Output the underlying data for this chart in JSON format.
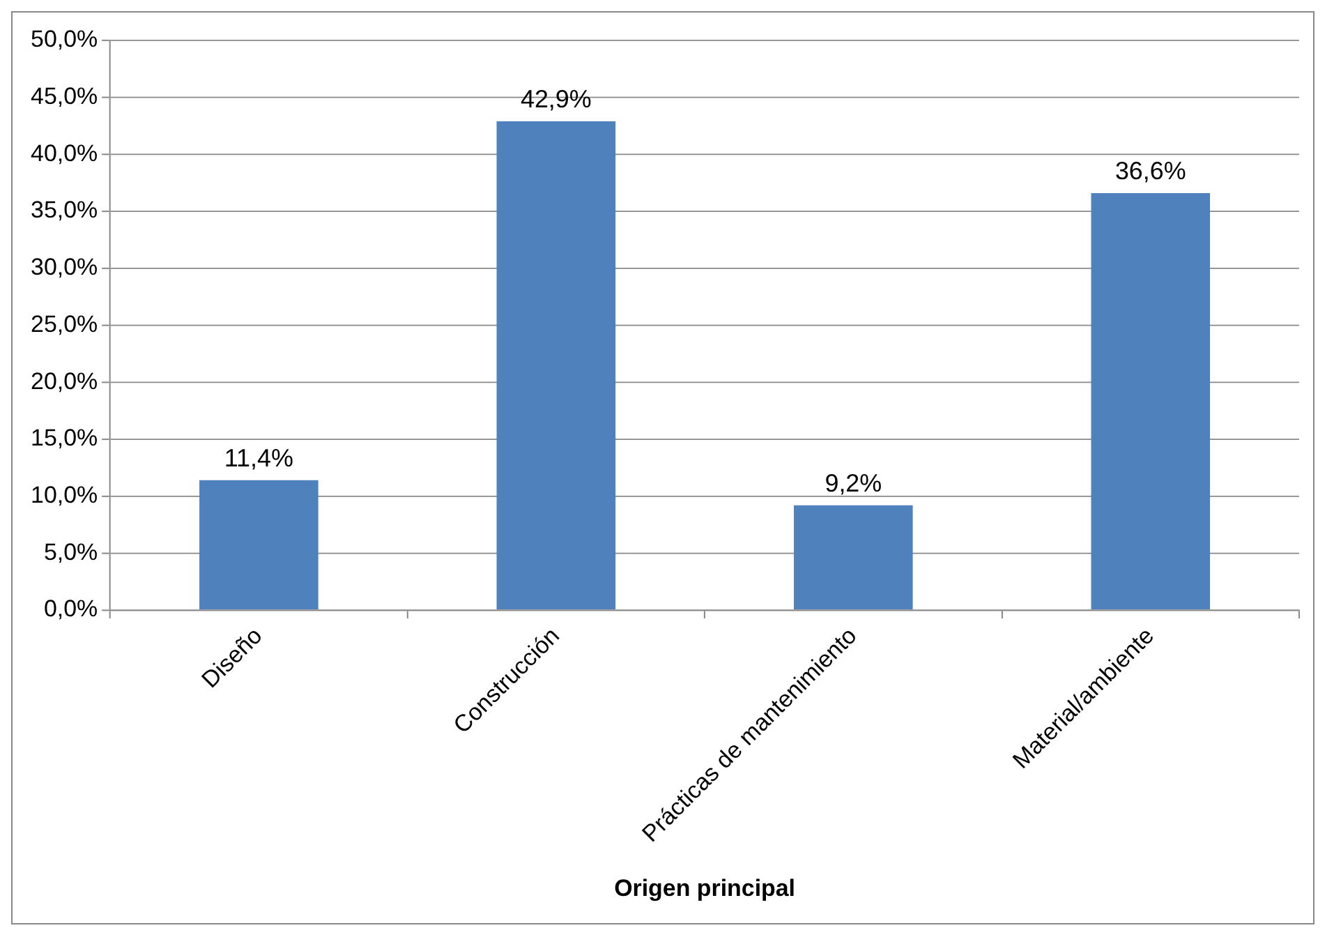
{
  "chart_data": {
    "type": "bar",
    "xlabel": "Origen principal",
    "categories": [
      "Diseño",
      "Construcción",
      "Prácticas de mantenimiento",
      "Material/ambiente"
    ],
    "values": [
      11.4,
      42.9,
      9.2,
      36.6
    ],
    "value_labels": [
      "11,4%",
      "42,9%",
      "9,2%",
      "36,6%"
    ],
    "color": "#4f81bd",
    "ylim": [
      0,
      50
    ],
    "yticks": [
      {
        "value": 0,
        "label": "0,0%"
      },
      {
        "value": 5,
        "label": "5,0%"
      },
      {
        "value": 10,
        "label": "10,0%"
      },
      {
        "value": 15,
        "label": "15,0%"
      },
      {
        "value": 20,
        "label": "20,0%"
      },
      {
        "value": 25,
        "label": "25,0%"
      },
      {
        "value": 30,
        "label": "30,0%"
      },
      {
        "value": 35,
        "label": "35,0%"
      },
      {
        "value": 40,
        "label": "40,0%"
      },
      {
        "value": 45,
        "label": "45,0%"
      },
      {
        "value": 50,
        "label": "50,0%"
      }
    ],
    "grid": "y",
    "legend": false
  }
}
